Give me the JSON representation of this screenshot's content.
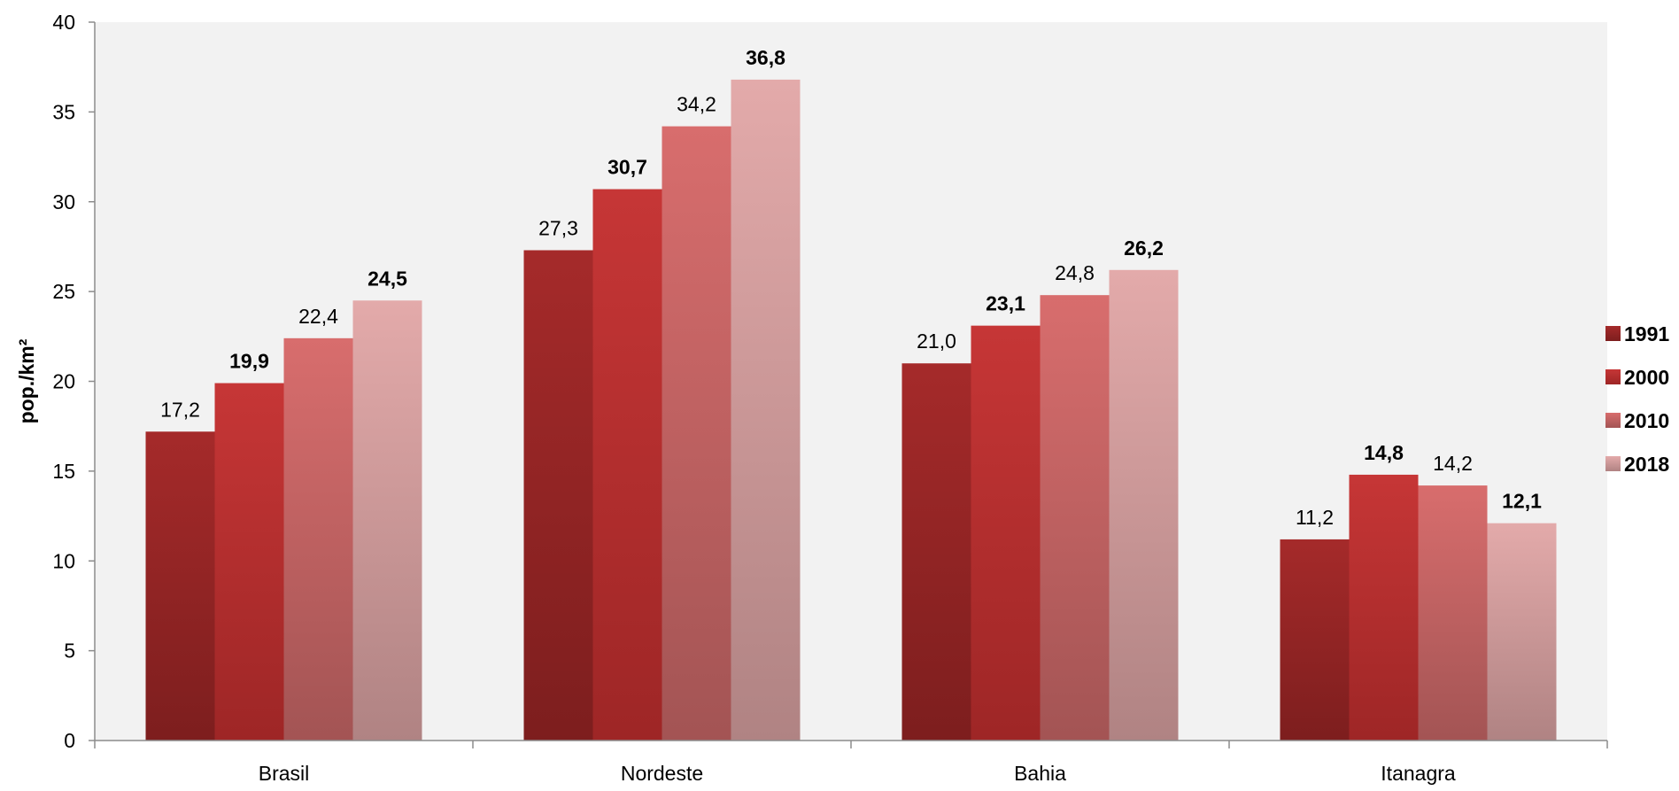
{
  "chart_data": {
    "type": "bar",
    "ylabel": "pop./km²",
    "ylim": [
      0,
      40
    ],
    "ytick_step": 5,
    "ytick_labels": [
      "0",
      "5",
      "10",
      "15",
      "20",
      "25",
      "30",
      "35",
      "40"
    ],
    "grid": false,
    "legend_position": "right",
    "categories": [
      "Brasil",
      "Nordeste",
      "Bahia",
      "Itanagra"
    ],
    "series": [
      {
        "name": "1991",
        "color_top": "#a52a2a",
        "color_bottom": "#7d1e1e",
        "values": [
          17.2,
          27.3,
          21.0,
          11.2
        ],
        "value_labels": [
          "17,2",
          "27,3",
          "21,0",
          "11,2"
        ],
        "labels_bold": false
      },
      {
        "name": "2000",
        "color_top": "#c63636",
        "color_bottom": "#9e2626",
        "values": [
          19.9,
          30.7,
          23.1,
          14.8
        ],
        "value_labels": [
          "19,9",
          "30,7",
          "23,1",
          "14,8"
        ],
        "labels_bold": true
      },
      {
        "name": "2010",
        "color_top": "#d86d6d",
        "color_bottom": "#a35454",
        "values": [
          22.4,
          34.2,
          24.8,
          14.2
        ],
        "value_labels": [
          "22,4",
          "34,2",
          "24,8",
          "14,2"
        ],
        "labels_bold": false
      },
      {
        "name": "2018",
        "color_top": "#e3aaaa",
        "color_bottom": "#b08383",
        "values": [
          24.5,
          36.8,
          26.2,
          12.1
        ],
        "value_labels": [
          "24,5",
          "36,8",
          "26,2",
          "12,1"
        ],
        "labels_bold": true
      }
    ],
    "colors": {
      "plot_background": "#f2f2f2",
      "axis": "#8c8c8c",
      "text": "#000000"
    }
  }
}
